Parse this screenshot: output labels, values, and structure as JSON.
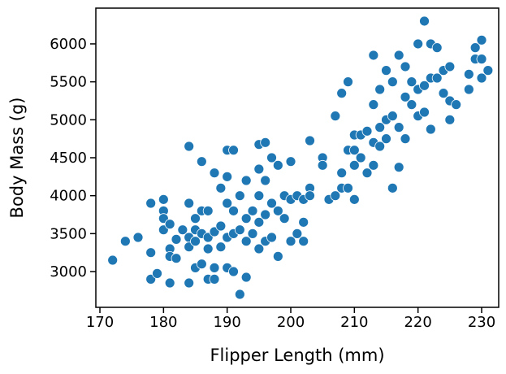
{
  "chart_data": {
    "type": "scatter",
    "x_label": "Flipper Length (mm)",
    "y_label": "Body Mass (g)",
    "color": "#1f77b4",
    "x": [
      172,
      174,
      176,
      178,
      178,
      178,
      179,
      180,
      180,
      180,
      180,
      181,
      181,
      181,
      181,
      182,
      182,
      183,
      184,
      184,
      184,
      184,
      184,
      185,
      185,
      185,
      185,
      186,
      186,
      186,
      186,
      187,
      187,
      187,
      187,
      188,
      188,
      188,
      188,
      189,
      189,
      189,
      190,
      190,
      190,
      190,
      190,
      191,
      191,
      191,
      191,
      192,
      192,
      192,
      193,
      193,
      193,
      193,
      194,
      194,
      195,
      195,
      195,
      195,
      195,
      196,
      196,
      196,
      196,
      197,
      197,
      197,
      198,
      198,
      198,
      199,
      199,
      200,
      200,
      200,
      201,
      201,
      202,
      202,
      202,
      203,
      203,
      203,
      205,
      205,
      206,
      207,
      207,
      208,
      208,
      208,
      209,
      209,
      209,
      210,
      210,
      210,
      210,
      211,
      211,
      212,
      212,
      213,
      213,
      213,
      213,
      214,
      214,
      214,
      215,
      215,
      215,
      216,
      216,
      216,
      217,
      217,
      217,
      218,
      218,
      218,
      219,
      219,
      220,
      220,
      220,
      221,
      221,
      221,
      222,
      222,
      222,
      223,
      223,
      224,
      224,
      225,
      225,
      225,
      226,
      228,
      228,
      229,
      229,
      230,
      230,
      230,
      231
    ],
    "y": [
      3150,
      3400,
      3450,
      3250,
      2900,
      3900,
      2975,
      3950,
      3800,
      3700,
      3550,
      3300,
      2850,
      3625,
      3200,
      3425,
      3175,
      3550,
      4650,
      3900,
      3450,
      2850,
      3325,
      3700,
      3550,
      3050,
      3400,
      4450,
      3800,
      3500,
      3100,
      3800,
      3300,
      2900,
      3450,
      4300,
      3525,
      3050,
      2900,
      4100,
      3600,
      3325,
      4600,
      4250,
      3900,
      3450,
      3050,
      4600,
      3800,
      3500,
      3000,
      4000,
      3550,
      2700,
      4200,
      3700,
      2925,
      3400,
      3800,
      3500,
      4675,
      4350,
      4000,
      3650,
      3300,
      4700,
      4200,
      3750,
      3400,
      4500,
      3900,
      3450,
      4400,
      3800,
      3200,
      4000,
      3700,
      4450,
      3950,
      3400,
      4000,
      3500,
      3650,
      3400,
      3950,
      4725,
      4100,
      4000,
      4500,
      4400,
      3950,
      5050,
      4000,
      5350,
      4300,
      4100,
      5500,
      4600,
      4100,
      4800,
      4600,
      4400,
      3950,
      4800,
      4500,
      4850,
      4300,
      5850,
      5200,
      4700,
      4400,
      5400,
      4900,
      4650,
      5650,
      5000,
      4750,
      5500,
      5050,
      4100,
      5850,
      4375,
      4900,
      5700,
      5300,
      4750,
      5500,
      5200,
      6000,
      5400,
      5050,
      6300,
      5450,
      5100,
      6000,
      5550,
      4875,
      5950,
      5550,
      5650,
      5350,
      5700,
      5250,
      5000,
      5200,
      5600,
      5400,
      5950,
      5800,
      6050,
      5800,
      5550,
      5650
    ],
    "xlim": [
      169.36,
      232.68
    ],
    "ylim": [
      2529,
      6471
    ],
    "xticks": [
      170,
      180,
      190,
      200,
      210,
      220,
      230
    ],
    "yticks": [
      3000,
      3500,
      4000,
      4500,
      5000,
      5500,
      6000
    ]
  }
}
